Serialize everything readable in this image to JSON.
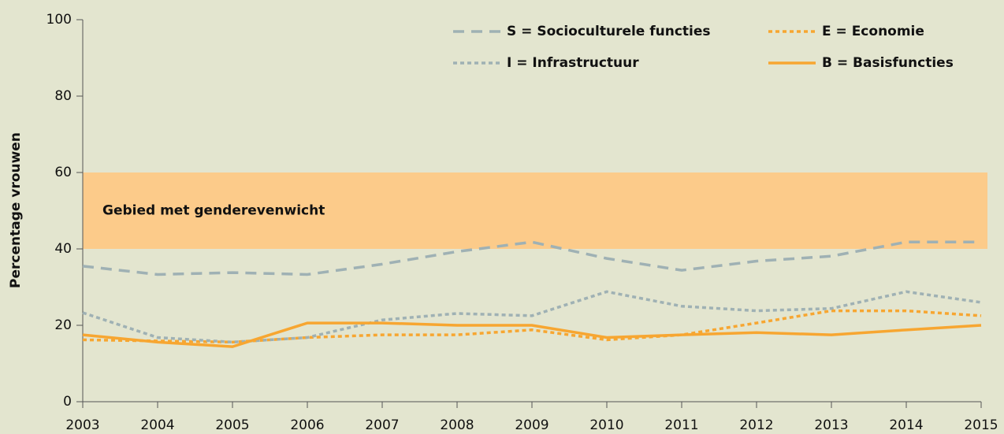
{
  "chart_data": {
    "type": "line",
    "ylabel": "Percentage vrouwen",
    "categories": [
      "2003",
      "2004",
      "2005",
      "2006",
      "2007",
      "2008",
      "2009",
      "2010",
      "2011",
      "2012",
      "2013",
      "2014",
      "2015"
    ],
    "ylim": [
      0,
      100
    ],
    "yticks": [
      0,
      20,
      40,
      60,
      80,
      100
    ],
    "bands": [
      {
        "from": 40,
        "to": 60,
        "label": "Gebied met genderevenwicht",
        "color": "#fccb8a"
      }
    ],
    "series": [
      {
        "name": "S = Socioculturele functies",
        "color": "#9fb1b4",
        "style": "dashed",
        "values": [
          35.5,
          33.3,
          33.8,
          33.3,
          36,
          39.3,
          41.8,
          37.5,
          34.4,
          36.8,
          38.1,
          41.8,
          41.8
        ]
      },
      {
        "name": "E = Economie",
        "color": "#f7a631",
        "style": "dotted",
        "values": [
          16.2,
          15.9,
          15.6,
          16.8,
          17.5,
          17.5,
          18.8,
          16.2,
          17.5,
          20.6,
          23.8,
          23.8,
          22.5
        ]
      },
      {
        "name": "I = Infrastructuur",
        "color": "#9fb1b4",
        "style": "dotted",
        "values": [
          23.3,
          16.8,
          15.6,
          16.8,
          21.4,
          23.1,
          22.5,
          28.8,
          25,
          23.8,
          24.4,
          28.8,
          26
        ]
      },
      {
        "name": "B = Basisfuncties",
        "color": "#f7a631",
        "style": "solid",
        "values": [
          17.5,
          15.6,
          14.4,
          20.6,
          20.6,
          20,
          20,
          16.8,
          17.5,
          18.1,
          17.5,
          18.8,
          20
        ]
      }
    ]
  }
}
